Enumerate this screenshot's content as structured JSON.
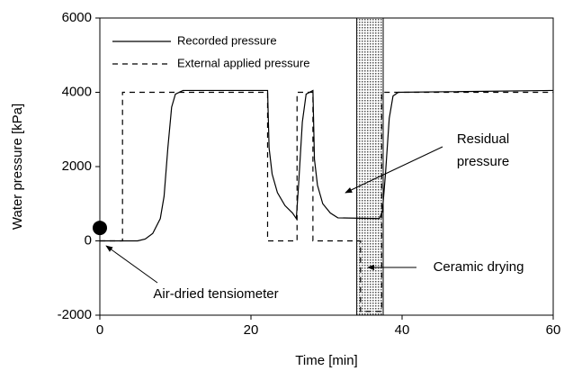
{
  "chart_data": {
    "type": "line",
    "x_label": "Time [min]",
    "y_label": "Water pressure [kPa]",
    "xlim": [
      0,
      60
    ],
    "ylim": [
      -2000,
      6000
    ],
    "xticks": [
      0,
      20,
      40,
      60
    ],
    "yticks": [
      -2000,
      0,
      2000,
      4000,
      6000
    ],
    "legend": "upper left",
    "series": [
      {
        "name": "Recorded pressure",
        "color": "#000000",
        "dash": "solid",
        "x": [
          0,
          5,
          6,
          7,
          8,
          8.5,
          9,
          9.5,
          10,
          11,
          22.2,
          22.4,
          22.8,
          23.5,
          24.5,
          25.5,
          26,
          26.3,
          26.8,
          27.3,
          28.2,
          28.4,
          28.8,
          29.5,
          30.5,
          31.5,
          37,
          37.4,
          37.8,
          38.3,
          38.8,
          39.5,
          60
        ],
        "values": [
          0,
          0,
          50,
          200,
          600,
          1200,
          2500,
          3600,
          3950,
          4050,
          4050,
          2500,
          1800,
          1300,
          950,
          750,
          600,
          1500,
          3200,
          3950,
          4050,
          2200,
          1500,
          1000,
          750,
          620,
          600,
          800,
          1800,
          3300,
          3900,
          4000,
          4050
        ]
      },
      {
        "name": "External applied pressure",
        "color": "#000000",
        "dash": "dashed",
        "x": [
          0,
          3,
          3,
          22.2,
          22.2,
          26.1,
          26.1,
          28.2,
          28.2,
          34.5,
          34.5,
          37.3,
          37.3,
          60
        ],
        "values": [
          0,
          0,
          4000,
          4000,
          0,
          0,
          4000,
          4000,
          0,
          0,
          -1900,
          -1900,
          4000,
          4000
        ]
      }
    ],
    "marker": {
      "x": 0,
      "y": 350
    },
    "shaded_region": [
      34,
      37.5
    ],
    "annotations": [
      {
        "lines": [
          "Residual",
          "pressure"
        ]
      },
      {
        "lines": [
          "Ceramic drying"
        ]
      },
      {
        "lines": [
          "Air-dried tensiometer"
        ]
      }
    ]
  }
}
